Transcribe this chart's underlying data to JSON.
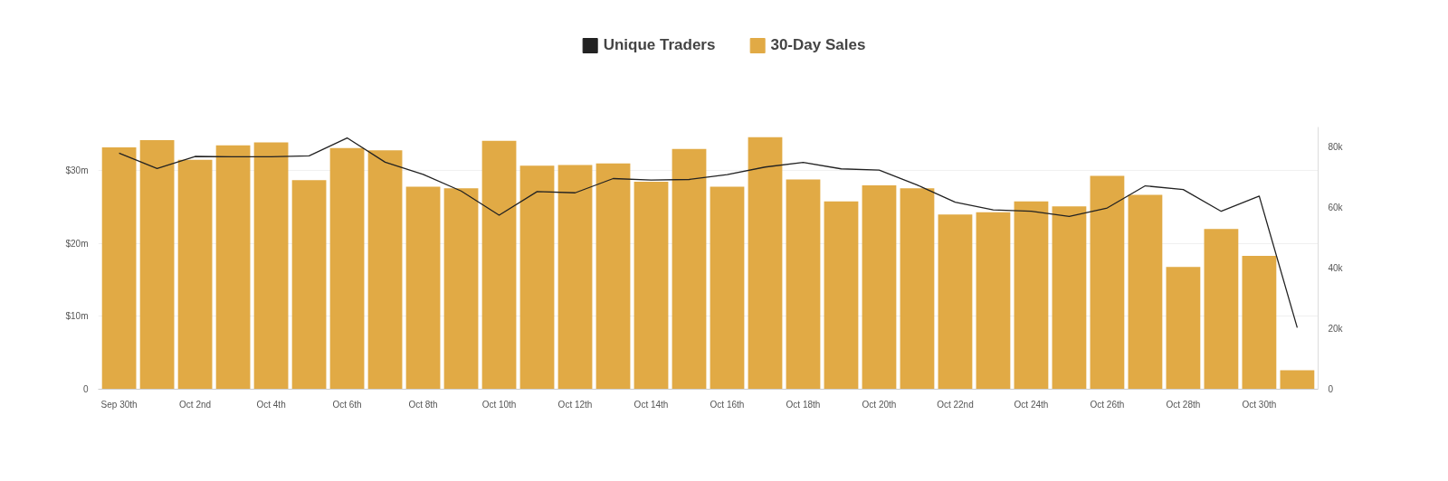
{
  "chart_data": {
    "type": "bar",
    "categories": [
      "Sep 30th",
      null,
      "Oct 2nd",
      null,
      "Oct 4th",
      null,
      "Oct 6th",
      null,
      "Oct 8th",
      null,
      "Oct 10th",
      null,
      "Oct 12th",
      null,
      "Oct 14th",
      null,
      "Oct 16th",
      null,
      "Oct 18th",
      null,
      "Oct 20th",
      null,
      "Oct 22nd",
      null,
      "Oct 24th",
      null,
      "Oct 26th",
      null,
      "Oct 28th",
      null,
      "Oct 30th",
      null
    ],
    "series": [
      {
        "name": "Unique Traders",
        "type": "line",
        "axis": "y2",
        "color": "#222222",
        "values": [
          77.9,
          72.8,
          76.8,
          76.7,
          76.7,
          77.0,
          82.9,
          74.9,
          70.9,
          65.4,
          57.4,
          65.2,
          64.8,
          69.5,
          69.0,
          69.2,
          70.8,
          73.3,
          74.8,
          72.7,
          72.3,
          67.4,
          61.7,
          59.2,
          58.7,
          57.0,
          59.8,
          67.1,
          65.9,
          58.7,
          63.7,
          20.3
        ]
      },
      {
        "name": "30-Day Sales",
        "color": "#e1aa45",
        "values": [
          33.2,
          34.2,
          31.5,
          33.5,
          33.9,
          28.7,
          33.1,
          32.8,
          27.8,
          27.6,
          34.1,
          30.7,
          30.8,
          31.0,
          28.5,
          33.0,
          27.8,
          34.6,
          28.8,
          25.8,
          28.0,
          27.6,
          24.0,
          24.3,
          25.8,
          25.1,
          29.3,
          26.7,
          16.8,
          22.0,
          18.3,
          2.6
        ]
      }
    ],
    "ylim": [
      0,
      36
    ],
    "yticks": [
      0,
      {
        "value": 10,
        "label": "$10m"
      },
      {
        "value": 20,
        "label": "$20m"
      },
      {
        "value": 30,
        "label": "$30m"
      }
    ],
    "y2lim": [
      0,
      86.5
    ],
    "y2ticks": [
      0,
      {
        "value": 20,
        "label": "20k"
      },
      {
        "value": 40,
        "label": "40k"
      },
      {
        "value": 60,
        "label": "60k"
      },
      {
        "value": 80,
        "label": "80k"
      }
    ],
    "grid": "y",
    "legend": "top"
  }
}
